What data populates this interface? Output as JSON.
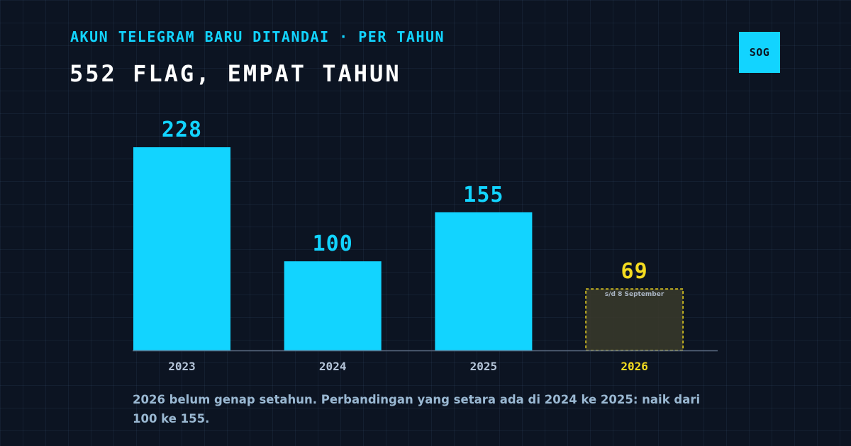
{
  "header": {
    "kicker": "AKUN TELEGRAM BARU DITANDAI · PER TAHUN",
    "title": "552 FLAG, EMPAT TAHUN",
    "brand": "SOG"
  },
  "colors": {
    "background": "#0c1422",
    "bar": "#12d4ff",
    "partial_year": "#f4dc20",
    "partial_fill": "#3a3a2a",
    "axis": "#5b6a82",
    "year_label": "#b4c4d8",
    "footnote": "#9ab8d2"
  },
  "chart_data": {
    "type": "bar",
    "categories": [
      "2023",
      "2024",
      "2025",
      "2026"
    ],
    "values": [
      228,
      100,
      155,
      69
    ],
    "value_labels": [
      "228",
      "100",
      "155",
      "69"
    ],
    "partial": [
      false,
      false,
      false,
      true
    ],
    "partial_note": "s/d 8 September",
    "ylim": [
      0,
      228
    ],
    "grid": false,
    "legend": "none"
  },
  "footnote": "2026 belum genap setahun. Perbandingan yang setara ada di 2024 ke 2025: naik dari 100 ke 155."
}
